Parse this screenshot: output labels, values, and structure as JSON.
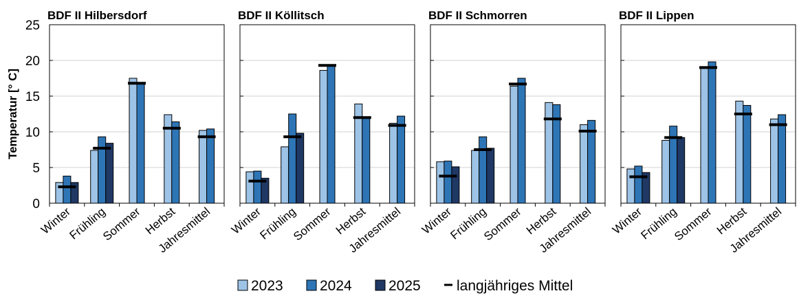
{
  "chart_data": {
    "type": "bar",
    "ylabel": "Temperatur [° C]",
    "ylim": [
      0,
      25
    ],
    "yticks": [
      "0",
      "5",
      "10",
      "15",
      "20",
      "25"
    ],
    "categories": [
      "Winter",
      "Frühling",
      "Sommer",
      "Herbst",
      "Jahresmittel"
    ],
    "grid": true,
    "legend_position": "bottom",
    "legend": [
      {
        "label": "2023",
        "color": "#9dc3e6",
        "marker": "box"
      },
      {
        "label": "2024",
        "color": "#2e75b6",
        "marker": "box"
      },
      {
        "label": "2025",
        "color": "#1f3864",
        "marker": "box"
      },
      {
        "label": "langjähriges Mittel",
        "color": "#000000",
        "marker": "line"
      }
    ],
    "colors": {
      "2023": "#9dc3e6",
      "2024": "#2e75b6",
      "2025": "#1f3864",
      "mean": "#000000"
    },
    "panels": [
      {
        "title": "BDF II Hilbersdorf",
        "series": [
          {
            "name": "2023",
            "values": [
              2.9,
              7.4,
              17.5,
              12.4,
              10.2
            ]
          },
          {
            "name": "2024",
            "values": [
              3.8,
              9.3,
              16.8,
              11.4,
              10.4
            ]
          },
          {
            "name": "2025",
            "values": [
              2.9,
              8.4,
              null,
              null,
              null
            ]
          }
        ],
        "mean": [
          2.3,
          7.7,
          16.8,
          10.5,
          9.3
        ]
      },
      {
        "title": "BDF II Köllitsch",
        "series": [
          {
            "name": "2023",
            "values": [
              4.4,
              7.9,
              18.6,
              13.9,
              11.2
            ]
          },
          {
            "name": "2024",
            "values": [
              4.5,
              12.5,
              19.4,
              12.0,
              12.2
            ]
          },
          {
            "name": "2025",
            "values": [
              3.5,
              9.8,
              null,
              null,
              null
            ]
          }
        ],
        "mean": [
          3.1,
          9.3,
          19.3,
          12.0,
          10.9
        ]
      },
      {
        "title": "BDF II Schmorren",
        "series": [
          {
            "name": "2023",
            "values": [
              5.8,
              7.4,
              16.4,
              14.1,
              11.0
            ]
          },
          {
            "name": "2024",
            "values": [
              5.9,
              9.3,
              17.5,
              13.8,
              11.6
            ]
          },
          {
            "name": "2025",
            "values": [
              5.1,
              7.7,
              null,
              null,
              null
            ]
          }
        ],
        "mean": [
          3.8,
          7.5,
          16.7,
          11.8,
          10.1
        ]
      },
      {
        "title": "BDF II Lippen",
        "series": [
          {
            "name": "2023",
            "values": [
              4.8,
              8.8,
              18.9,
              14.3,
              11.8
            ]
          },
          {
            "name": "2024",
            "values": [
              5.2,
              10.8,
              19.8,
              13.7,
              12.4
            ]
          },
          {
            "name": "2025",
            "values": [
              4.3,
              9.2,
              null,
              null,
              null
            ]
          }
        ],
        "mean": [
          3.7,
          9.2,
          19.0,
          12.5,
          11.0
        ]
      }
    ]
  }
}
